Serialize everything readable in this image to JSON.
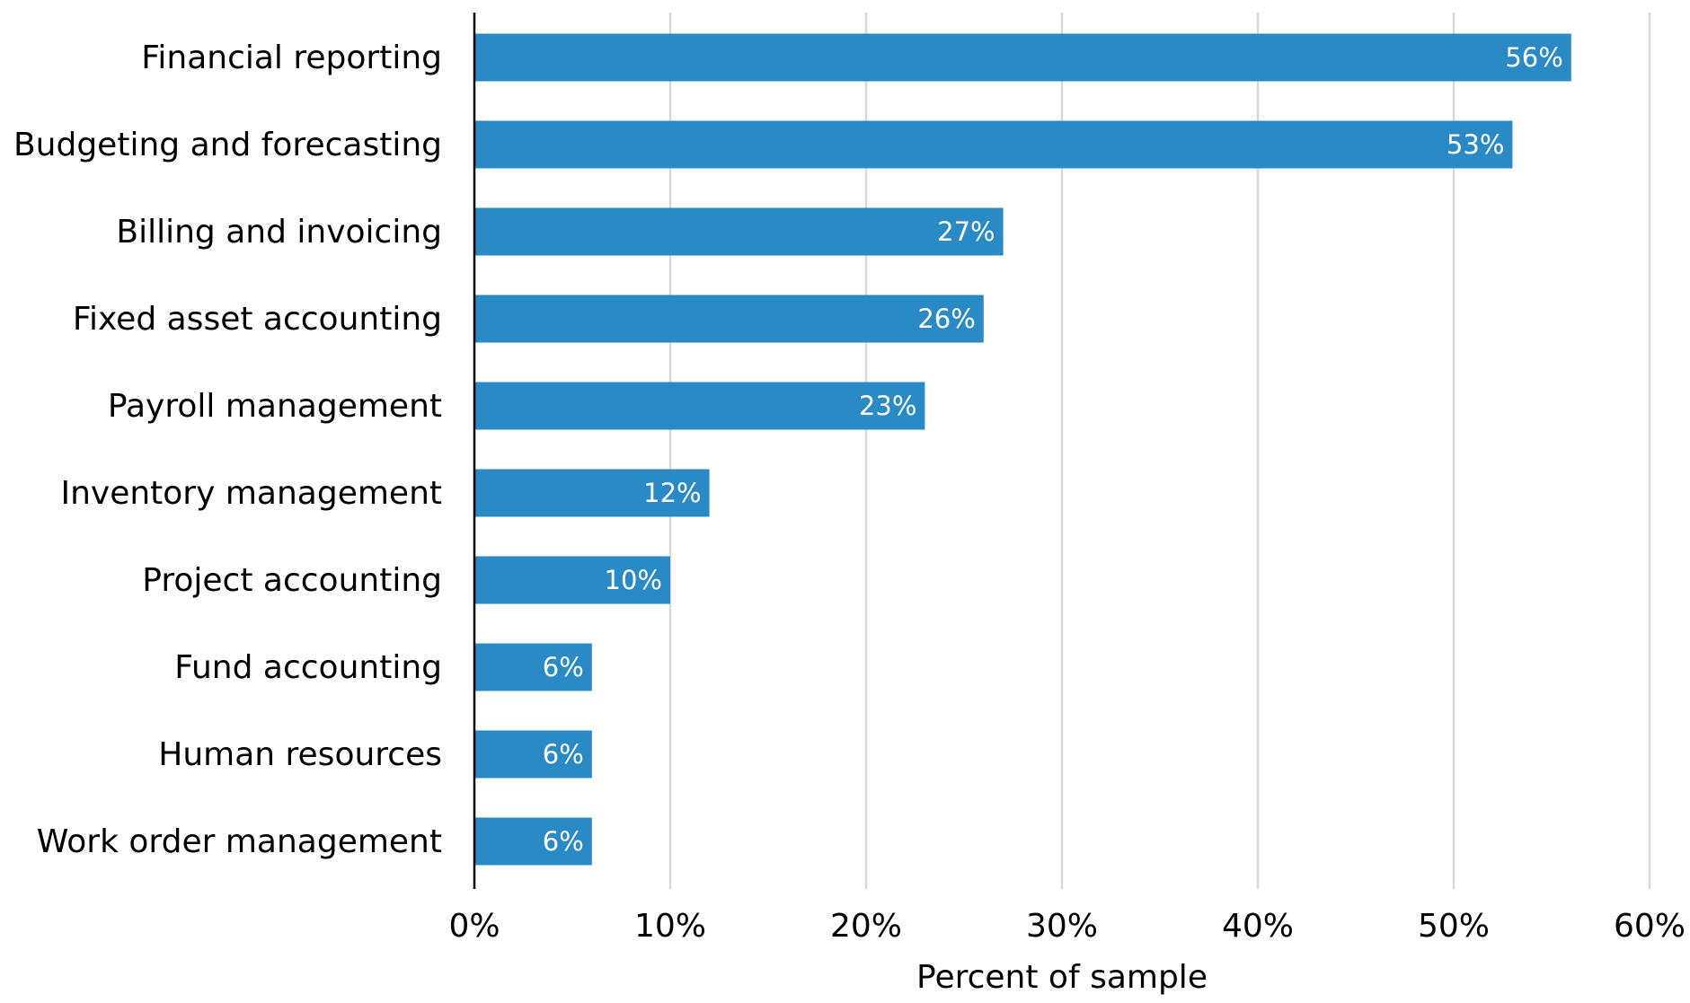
{
  "chart_data": {
    "type": "bar",
    "orientation": "horizontal",
    "categories": [
      "Financial reporting",
      "Budgeting and forecasting",
      "Billing and invoicing",
      "Fixed asset accounting",
      "Payroll management",
      "Inventory management",
      "Project accounting",
      "Fund accounting",
      "Human resources",
      "Work order management"
    ],
    "values": [
      56,
      53,
      27,
      26,
      23,
      12,
      10,
      6,
      6,
      6
    ],
    "data_labels": [
      "56%",
      "53%",
      "27%",
      "26%",
      "23%",
      "12%",
      "10%",
      "6%",
      "6%",
      "6%"
    ],
    "xlabel": "Percent of sample",
    "ylabel": "",
    "xlim": [
      0,
      60
    ],
    "x_ticks": [
      0,
      10,
      20,
      30,
      40,
      50,
      60
    ],
    "x_tick_labels": [
      "0%",
      "10%",
      "20%",
      "30%",
      "40%",
      "50%",
      "60%"
    ],
    "grid": "vertical",
    "legend": "none",
    "colors": {
      "bar": "#2a8ac6",
      "gridline": "#d9d9d9",
      "axis": "#000000",
      "data_label": "#ffffff"
    }
  }
}
